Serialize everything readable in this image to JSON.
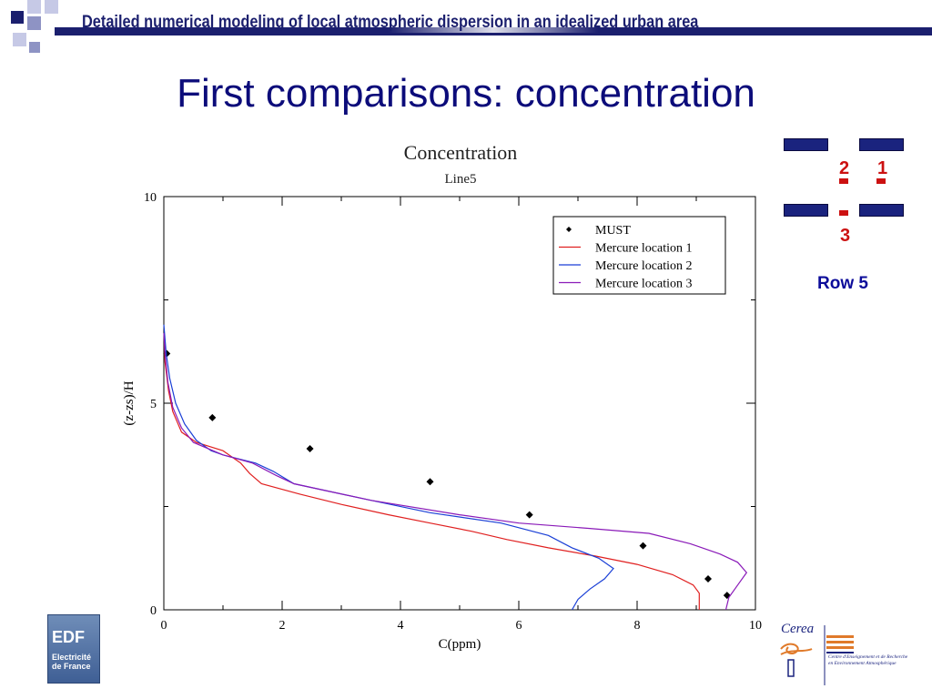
{
  "banner": {
    "title": "Detailed numerical modeling of local atmospheric dispersion in an idealized urban area",
    "colors": {
      "dark": "#1b1f6e",
      "mid": "#8e93c4",
      "light": "#c6c9e6"
    }
  },
  "slide": {
    "title": "First comparisons: concentration"
  },
  "schematic": {
    "locations": {
      "one": "1",
      "two": "2",
      "three": "3"
    },
    "row_label": "Row 5",
    "building_color": "#1a237e",
    "marker_color": "#cc1111"
  },
  "logos": {
    "edf": {
      "main": "EDF",
      "sub_line1": "Electricité",
      "sub_line2": "de France"
    },
    "cerea": {
      "name": "Cerea",
      "description": "Centre d'Enseignement et de Recherche en Environnement Atmosphérique"
    }
  },
  "chart_data": {
    "type": "line",
    "title": "Concentration",
    "subtitle": "Line5",
    "xlabel": "C(ppm)",
    "ylabel": "(z-zs)/H",
    "xlim": [
      0,
      10
    ],
    "ylim": [
      0,
      10
    ],
    "x_ticks": [
      "0",
      "2",
      "4",
      "6",
      "8",
      "10"
    ],
    "y_ticks": [
      "0",
      "5",
      "10"
    ],
    "grid": false,
    "legend_position": "top-right",
    "series": [
      {
        "name": "MUST",
        "style": "markers",
        "color": "#000000",
        "points": [
          [
            0.05,
            6.2
          ],
          [
            0.82,
            4.65
          ],
          [
            2.47,
            3.9
          ],
          [
            4.5,
            3.1
          ],
          [
            6.18,
            2.3
          ],
          [
            8.1,
            1.55
          ],
          [
            9.2,
            0.75
          ],
          [
            9.52,
            0.35
          ]
        ]
      },
      {
        "name": "Mercure location 1",
        "style": "line",
        "color": "#e02020",
        "points": [
          [
            9.05,
            0
          ],
          [
            9.05,
            0.4
          ],
          [
            8.95,
            0.6
          ],
          [
            8.6,
            0.85
          ],
          [
            8.0,
            1.1
          ],
          [
            7.3,
            1.3
          ],
          [
            6.5,
            1.5
          ],
          [
            5.8,
            1.7
          ],
          [
            5.2,
            1.9
          ],
          [
            4.5,
            2.1
          ],
          [
            3.8,
            2.3
          ],
          [
            3.0,
            2.55
          ],
          [
            2.3,
            2.8
          ],
          [
            1.65,
            3.05
          ],
          [
            1.45,
            3.3
          ],
          [
            1.3,
            3.55
          ],
          [
            1.0,
            3.85
          ],
          [
            0.55,
            4.05
          ],
          [
            0.3,
            4.3
          ],
          [
            0.15,
            4.8
          ],
          [
            0.08,
            5.3
          ],
          [
            0.02,
            6.0
          ],
          [
            0.01,
            6.5
          ]
        ]
      },
      {
        "name": "Mercure location 2",
        "style": "line",
        "color": "#1a3fd6",
        "points": [
          [
            6.9,
            0
          ],
          [
            7.0,
            0.25
          ],
          [
            7.2,
            0.5
          ],
          [
            7.45,
            0.75
          ],
          [
            7.6,
            1.0
          ],
          [
            7.35,
            1.25
          ],
          [
            6.9,
            1.5
          ],
          [
            6.5,
            1.8
          ],
          [
            5.7,
            2.1
          ],
          [
            4.5,
            2.35
          ],
          [
            3.5,
            2.65
          ],
          [
            2.2,
            3.05
          ],
          [
            1.85,
            3.35
          ],
          [
            1.55,
            3.55
          ],
          [
            1.0,
            3.75
          ],
          [
            0.8,
            3.85
          ],
          [
            0.55,
            4.1
          ],
          [
            0.35,
            4.5
          ],
          [
            0.2,
            5.0
          ],
          [
            0.1,
            5.6
          ],
          [
            0.04,
            6.2
          ],
          [
            0.0,
            6.9
          ]
        ]
      },
      {
        "name": "Mercure location 3",
        "style": "line",
        "color": "#8a1ab8",
        "points": [
          [
            9.5,
            0
          ],
          [
            9.55,
            0.3
          ],
          [
            9.7,
            0.6
          ],
          [
            9.85,
            0.9
          ],
          [
            9.7,
            1.15
          ],
          [
            9.4,
            1.35
          ],
          [
            8.9,
            1.6
          ],
          [
            8.2,
            1.85
          ],
          [
            7.2,
            1.97
          ],
          [
            6.0,
            2.1
          ],
          [
            5.0,
            2.3
          ],
          [
            3.5,
            2.65
          ],
          [
            2.2,
            3.05
          ],
          [
            1.9,
            3.25
          ],
          [
            1.5,
            3.55
          ],
          [
            1.0,
            3.75
          ],
          [
            0.5,
            4.05
          ],
          [
            0.3,
            4.4
          ],
          [
            0.15,
            4.9
          ],
          [
            0.07,
            5.5
          ],
          [
            0.02,
            6.2
          ],
          [
            0.0,
            6.7
          ]
        ]
      }
    ]
  }
}
